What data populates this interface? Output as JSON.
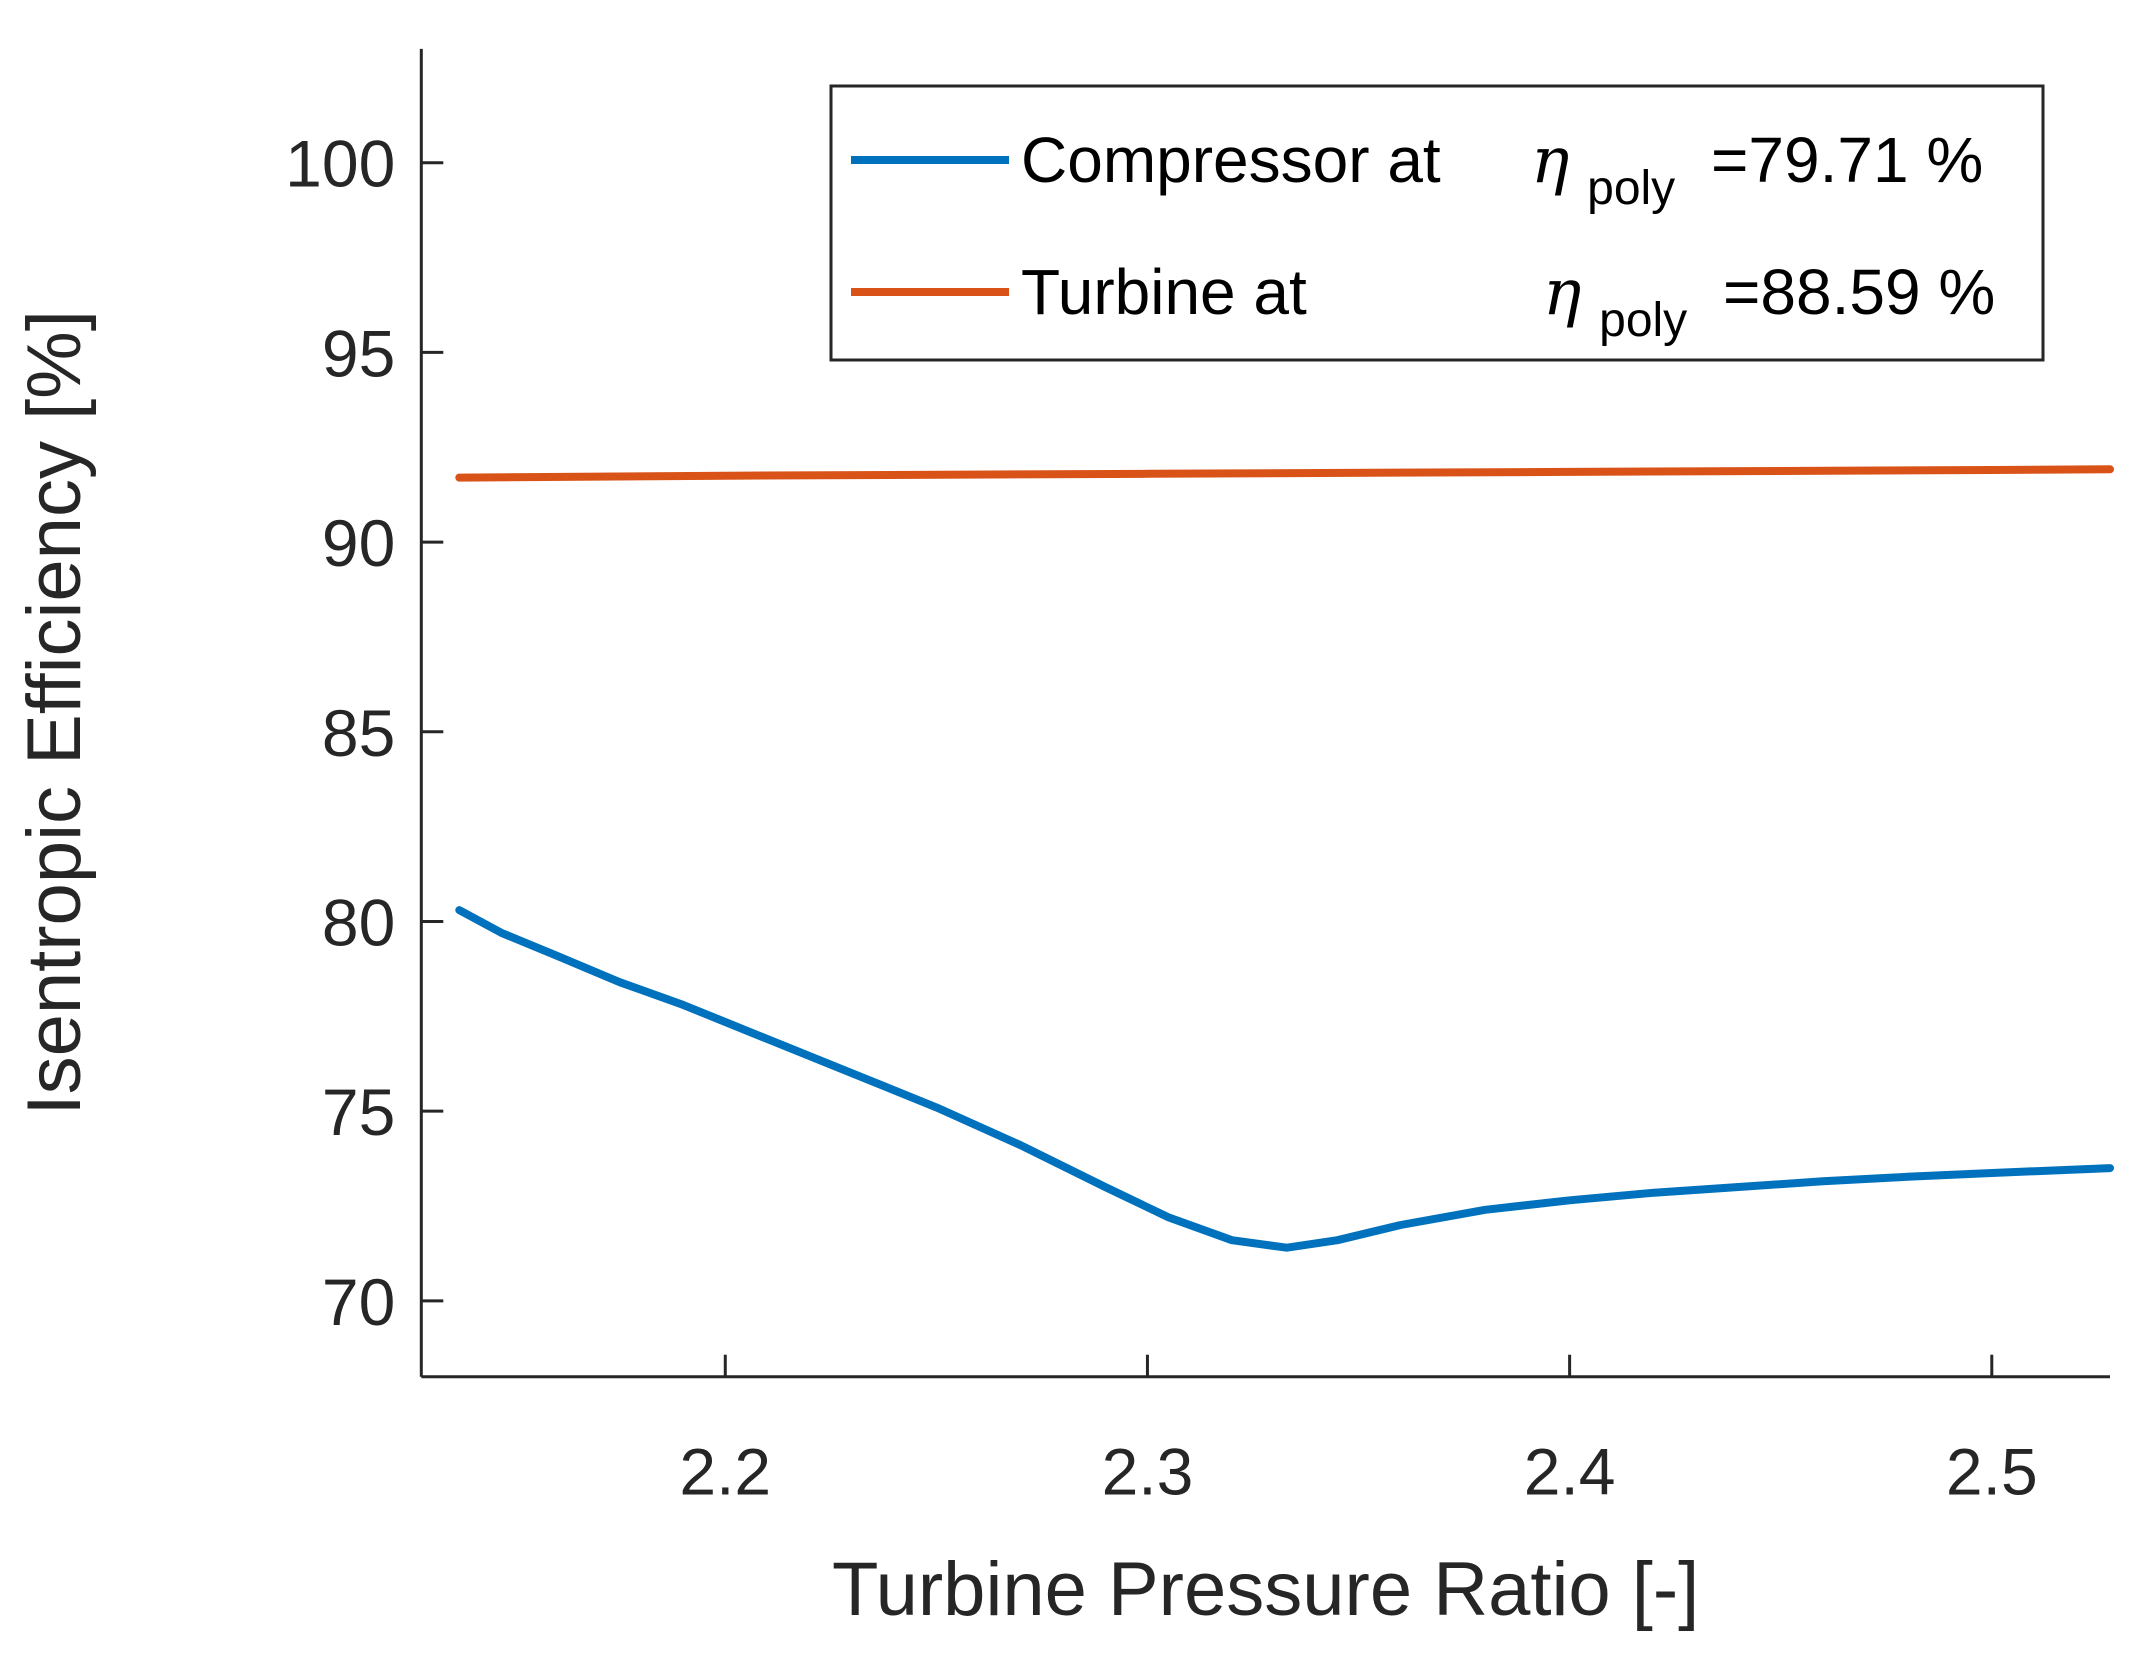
{
  "chart_data": {
    "type": "line",
    "title": "",
    "xlabel": "Turbine Pressure Ratio [-]",
    "ylabel": "Isentropic Efficiency [%]",
    "xlim": [
      2.128,
      2.528
    ],
    "ylim": [
      68,
      103
    ],
    "xticks": [
      2.2,
      2.3,
      2.4,
      2.5
    ],
    "xtick_labels": [
      "2.2",
      "2.3",
      "2.4",
      "2.5"
    ],
    "yticks": [
      70,
      75,
      80,
      85,
      90,
      95,
      100
    ],
    "ytick_labels": [
      "70",
      "75",
      "80",
      "85",
      "90",
      "95",
      "100"
    ],
    "grid": false,
    "legend_position": "top-right",
    "series": [
      {
        "name": "Compressor",
        "legend": {
          "prefix": "Compressor at",
          "symbol": "η",
          "subscript": "poly",
          "value": "=79.71 %"
        },
        "color": "#0072BD",
        "x": [
          2.137,
          2.147,
          2.16,
          2.175,
          2.19,
          2.21,
          2.23,
          2.25,
          2.27,
          2.29,
          2.305,
          2.32,
          2.333,
          2.345,
          2.36,
          2.38,
          2.4,
          2.42,
          2.44,
          2.46,
          2.48,
          2.5,
          2.528
        ],
        "y": [
          80.3,
          79.7,
          79.1,
          78.4,
          77.8,
          76.9,
          76.0,
          75.1,
          74.1,
          73.0,
          72.2,
          71.6,
          71.4,
          71.6,
          72.0,
          72.4,
          72.65,
          72.85,
          73.0,
          73.15,
          73.27,
          73.37,
          73.5
        ]
      },
      {
        "name": "Turbine",
        "legend": {
          "prefix": "Turbine at",
          "symbol": "η",
          "subscript": "poly",
          "value": "=88.59 %"
        },
        "color": "#D95319",
        "x": [
          2.137,
          2.2,
          2.3,
          2.4,
          2.5,
          2.528
        ],
        "y": [
          91.7,
          91.75,
          91.8,
          91.85,
          91.9,
          91.92
        ]
      }
    ]
  }
}
